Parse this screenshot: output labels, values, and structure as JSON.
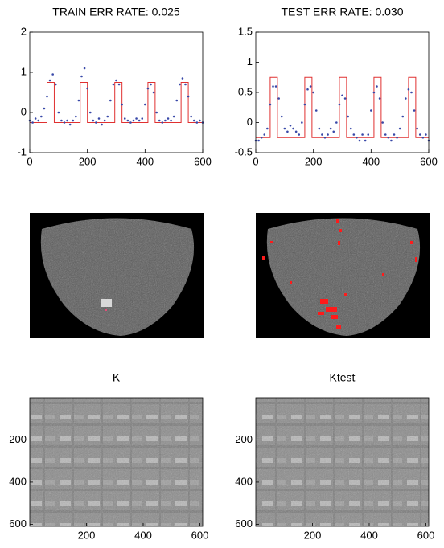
{
  "chart_data": [
    {
      "type": "line",
      "title": "TRAIN ERR RATE: 0.025",
      "xlim": [
        0,
        600
      ],
      "xticks": [
        0,
        200,
        400,
        600
      ],
      "ylim": [
        -1,
        2
      ],
      "yticks": [
        -1,
        0,
        1,
        2
      ],
      "series": [
        {
          "color": "#e03030",
          "linestyle": "-",
          "x": [
            0,
            60,
            60,
            85,
            85,
            175,
            175,
            200,
            200,
            295,
            295,
            320,
            320,
            410,
            410,
            435,
            435,
            525,
            525,
            550,
            550,
            600
          ],
          "values": [
            -0.25,
            -0.25,
            0.75,
            0.75,
            -0.25,
            -0.25,
            0.75,
            0.75,
            -0.25,
            -0.25,
            0.75,
            0.75,
            -0.25,
            -0.25,
            0.75,
            0.75,
            -0.25,
            -0.25,
            0.75,
            0.75,
            -0.25,
            -0.25
          ]
        },
        {
          "color": "#3848a8",
          "linestyle": ":",
          "x": [
            0,
            10,
            20,
            30,
            40,
            50,
            60,
            70,
            80,
            90,
            100,
            110,
            120,
            130,
            140,
            150,
            160,
            170,
            180,
            190,
            200,
            210,
            220,
            230,
            240,
            250,
            260,
            270,
            280,
            290,
            300,
            310,
            320,
            330,
            340,
            350,
            360,
            370,
            380,
            390,
            400,
            410,
            420,
            430,
            440,
            450,
            460,
            470,
            480,
            490,
            500,
            510,
            520,
            530,
            540,
            550,
            560,
            570,
            580,
            590,
            600
          ],
          "values": [
            -0.2,
            -0.25,
            -0.15,
            -0.2,
            -0.1,
            0.1,
            0.4,
            0.8,
            0.95,
            0.7,
            0.0,
            -0.2,
            -0.25,
            -0.2,
            -0.3,
            -0.2,
            -0.1,
            0.3,
            0.9,
            1.1,
            0.6,
            0.0,
            -0.2,
            -0.25,
            -0.15,
            -0.3,
            -0.2,
            -0.1,
            0.3,
            0.7,
            0.8,
            0.7,
            0.2,
            -0.15,
            -0.2,
            -0.25,
            -0.2,
            -0.15,
            -0.2,
            -0.15,
            0.2,
            0.6,
            0.7,
            0.5,
            0.0,
            -0.2,
            -0.25,
            -0.2,
            -0.15,
            -0.2,
            -0.1,
            0.3,
            0.7,
            0.85,
            0.7,
            0.4,
            -0.1,
            -0.2,
            -0.25,
            -0.2,
            -0.25
          ]
        }
      ]
    },
    {
      "type": "line",
      "title": "TEST ERR RATE: 0.030",
      "xlim": [
        0,
        600
      ],
      "xticks": [
        0,
        200,
        400,
        600
      ],
      "ylim": [
        -0.5,
        1.5
      ],
      "yticks": [
        -0.5,
        0,
        0.5,
        1,
        1.5
      ],
      "series": [
        {
          "color": "#e03030",
          "linestyle": "-",
          "x": [
            0,
            50,
            50,
            75,
            75,
            170,
            170,
            195,
            195,
            290,
            290,
            315,
            315,
            410,
            410,
            435,
            435,
            530,
            530,
            555,
            555,
            600
          ],
          "values": [
            -0.25,
            -0.25,
            0.75,
            0.75,
            -0.25,
            -0.25,
            0.75,
            0.75,
            -0.25,
            -0.25,
            0.75,
            0.75,
            -0.25,
            -0.25,
            0.75,
            0.75,
            -0.25,
            -0.25,
            0.75,
            0.75,
            -0.25,
            -0.25
          ]
        },
        {
          "color": "#3848a8",
          "linestyle": ":",
          "x": [
            0,
            10,
            20,
            30,
            40,
            50,
            60,
            70,
            80,
            90,
            100,
            110,
            120,
            130,
            140,
            150,
            160,
            170,
            180,
            190,
            200,
            210,
            220,
            230,
            240,
            250,
            260,
            270,
            280,
            290,
            300,
            310,
            320,
            330,
            340,
            350,
            360,
            370,
            380,
            390,
            400,
            410,
            420,
            430,
            440,
            450,
            460,
            470,
            480,
            490,
            500,
            510,
            520,
            530,
            540,
            550,
            560,
            570,
            580,
            590,
            600
          ],
          "values": [
            -0.3,
            -0.3,
            -0.25,
            -0.2,
            -0.1,
            0.3,
            0.6,
            0.6,
            0.4,
            0.1,
            -0.1,
            -0.15,
            -0.05,
            -0.1,
            -0.15,
            -0.2,
            0.0,
            0.3,
            0.55,
            0.6,
            0.5,
            0.2,
            -0.1,
            -0.2,
            -0.25,
            -0.2,
            -0.1,
            -0.15,
            0.0,
            0.3,
            0.45,
            0.4,
            0.1,
            -0.1,
            -0.2,
            -0.25,
            -0.3,
            -0.2,
            -0.3,
            -0.2,
            0.2,
            0.5,
            0.6,
            0.4,
            0.0,
            -0.2,
            -0.25,
            -0.3,
            -0.2,
            -0.25,
            -0.1,
            0.1,
            0.4,
            0.55,
            0.5,
            0.2,
            -0.1,
            -0.2,
            -0.25,
            -0.2,
            -0.3
          ]
        }
      ]
    },
    {
      "type": "heatmap",
      "title": "K",
      "xlim": [
        0,
        610
      ],
      "xticks": [
        200,
        400,
        600
      ],
      "ylim": [
        0,
        610
      ],
      "yticks": [
        200,
        400,
        600
      ],
      "yreverse": true
    },
    {
      "type": "heatmap",
      "title": "Ktest",
      "xlim": [
        0,
        610
      ],
      "xticks": [
        200,
        400,
        600
      ],
      "ylim": [
        0,
        610
      ],
      "yticks": [
        200,
        400,
        600
      ],
      "yreverse": true
    }
  ]
}
